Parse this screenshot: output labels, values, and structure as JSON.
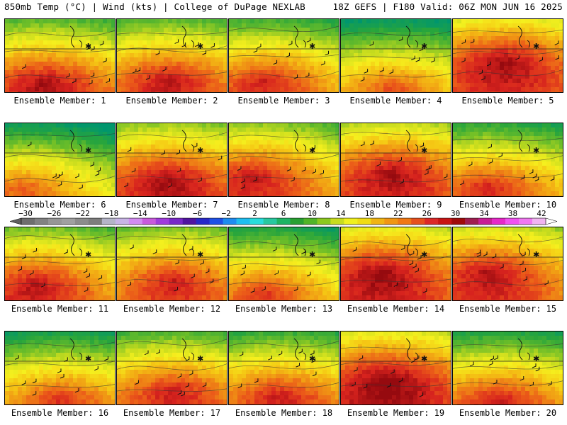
{
  "header": {
    "left": "850mb Temp (°C) | Wind (kts) | College of DuPage NEXLAB",
    "right": "18Z GEFS | F180 Valid: 06Z MON JUN 16 2025"
  },
  "colorbar": {
    "labels": [
      "-30",
      "-26",
      "-22",
      "-18",
      "-14",
      "-10",
      "-6",
      "-2",
      "2",
      "6",
      "10",
      "14",
      "18",
      "22",
      "26",
      "30",
      "34",
      "38",
      "42"
    ],
    "colors": [
      "#6e6e6e",
      "#828282",
      "#969696",
      "#a0a0a0",
      "#8c8c8c",
      "#7d7d7d",
      "#b4b4c8",
      "#c8b4e6",
      "#d28cf0",
      "#c85adc",
      "#a03cdc",
      "#7828c8",
      "#5014a0",
      "#2828c8",
      "#1e50e6",
      "#1e8cf0",
      "#1ebef0",
      "#28dcdc",
      "#28c8a0",
      "#1eb464",
      "#28a032",
      "#50b428",
      "#8cc81e",
      "#c8dc1e",
      "#f0f01e",
      "#f0dc14",
      "#f0b414",
      "#f09614",
      "#f07814",
      "#e6501e",
      "#dc2828",
      "#c81414",
      "#a00a0a",
      "#a01e50",
      "#c81e96",
      "#e628c8",
      "#f050f0",
      "#f078f0",
      "#f0b4f0"
    ]
  },
  "panels": [
    {
      "caption": "Ensemble Member: 1",
      "warmth": 0.68,
      "hot_x": 0.35,
      "hot_y": 0.85
    },
    {
      "caption": "Ensemble Member: 2",
      "warmth": 0.66,
      "hot_x": 0.45,
      "hot_y": 0.8
    },
    {
      "caption": "Ensemble Member: 3",
      "warmth": 0.62,
      "hot_x": 0.3,
      "hot_y": 0.82
    },
    {
      "caption": "Ensemble Member: 4",
      "warmth": 0.5,
      "hot_x": 0.45,
      "hot_y": 0.9
    },
    {
      "caption": "Ensemble Member: 5",
      "warmth": 0.78,
      "hot_x": 0.45,
      "hot_y": 0.55
    },
    {
      "caption": "Ensemble Member: 6",
      "warmth": 0.5,
      "hot_x": 0.15,
      "hot_y": 0.85
    },
    {
      "caption": "Ensemble Member: 7",
      "warmth": 0.72,
      "hot_x": 0.45,
      "hot_y": 0.75
    },
    {
      "caption": "Ensemble Member: 8",
      "warmth": 0.68,
      "hot_x": 0.2,
      "hot_y": 0.7
    },
    {
      "caption": "Ensemble Member: 9",
      "warmth": 0.74,
      "hot_x": 0.45,
      "hot_y": 0.65
    },
    {
      "caption": "Ensemble Member: 10",
      "warmth": 0.6,
      "hot_x": 0.3,
      "hot_y": 0.85
    },
    {
      "caption": "Ensemble Member: 11",
      "warmth": 0.68,
      "hot_x": 0.25,
      "hot_y": 0.75
    },
    {
      "caption": "Ensemble Member: 12",
      "warmth": 0.66,
      "hot_x": 0.5,
      "hot_y": 0.7
    },
    {
      "caption": "Ensemble Member: 13",
      "warmth": 0.56,
      "hot_x": 0.3,
      "hot_y": 0.85
    },
    {
      "caption": "Ensemble Member: 14",
      "warmth": 0.78,
      "hot_x": 0.35,
      "hot_y": 0.6
    },
    {
      "caption": "Ensemble Member: 15",
      "warmth": 0.74,
      "hot_x": 0.3,
      "hot_y": 0.6
    },
    {
      "caption": "Ensemble Member: 16",
      "warmth": 0.56,
      "hot_x": 0.5,
      "hot_y": 0.9
    },
    {
      "caption": "Ensemble Member: 17",
      "warmth": 0.64,
      "hot_x": 0.5,
      "hot_y": 0.8
    },
    {
      "caption": "Ensemble Member: 18",
      "warmth": 0.62,
      "hot_x": 0.45,
      "hot_y": 0.85
    },
    {
      "caption": "Ensemble Member: 19",
      "warmth": 0.8,
      "hot_x": 0.4,
      "hot_y": 0.65
    },
    {
      "caption": "Ensemble Member: 20",
      "warmth": 0.6,
      "hot_x": 0.4,
      "hot_y": 0.9
    }
  ]
}
